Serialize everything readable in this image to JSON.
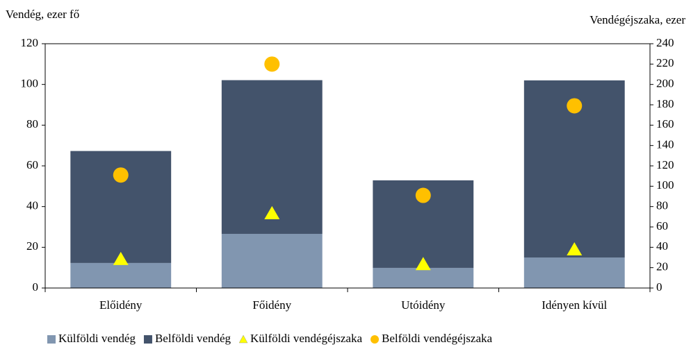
{
  "chart_data": {
    "type": "bar",
    "stacked": true,
    "ylabel": "Vendég, ezer fő",
    "y2label": "Vendégéjszaka, ezer",
    "categories": [
      "Előidény",
      "Főidény",
      "Utóidény",
      "Idényen kívül"
    ],
    "series": [
      {
        "name": "Külföldi vendég",
        "color": "#8196b0",
        "values": [
          12.3,
          26.6,
          9.9,
          15
        ]
      },
      {
        "name": "Belföldi vendég",
        "color": "#43536b",
        "values": [
          55,
          75.5,
          43,
          87
        ]
      },
      {
        "name": "Külföldi vendégéjszaka",
        "color": "#ffff00",
        "marker": "triangle",
        "axis": "y2",
        "values": [
          28,
          73,
          23,
          37.5
        ]
      },
      {
        "name": "Belföldi vendégéjszaka",
        "color": "#ffc000",
        "marker": "circle",
        "axis": "y2",
        "values": [
          111,
          220,
          91,
          179
        ]
      }
    ],
    "ylim": [
      0,
      120
    ],
    "yticks": [
      0,
      20,
      40,
      60,
      80,
      100,
      120
    ],
    "y2lim": [
      0,
      240
    ],
    "y2ticks": [
      0,
      20,
      40,
      60,
      80,
      100,
      120,
      140,
      160,
      180,
      200,
      220,
      240
    ],
    "legend": "bottom"
  }
}
